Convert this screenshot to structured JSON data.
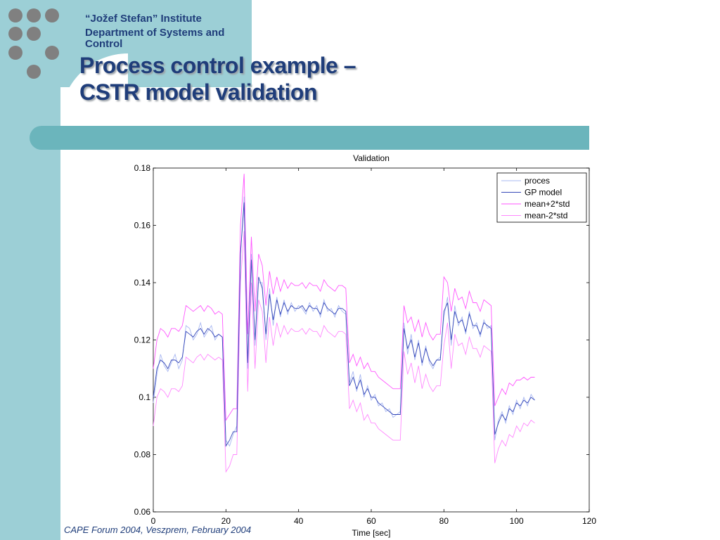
{
  "header": {
    "institute": "“Jožef Stefan” Institute",
    "department": "Department of Systems and Control"
  },
  "slide": {
    "title_line1": "Process control example –",
    "title_line2": "CSTR model validation"
  },
  "footer": {
    "text": "CAPE Forum 2004, Veszprem, February 2004"
  },
  "decor": {
    "dot_color": "#808080",
    "band_color": "#9ccfd6",
    "accent_color": "#6bb5bc",
    "title_color": "#1f3d7a"
  },
  "chart_data": {
    "type": "line",
    "title": "Validation",
    "xlabel": "Time [sec]",
    "ylabel": "",
    "xlim": [
      0,
      120
    ],
    "ylim": [
      0.06,
      0.18
    ],
    "xticks": [
      0,
      20,
      40,
      60,
      80,
      100,
      120
    ],
    "yticks": [
      0.06,
      0.08,
      0.1,
      0.12,
      0.14,
      0.16,
      0.18
    ],
    "xtick_labels": [
      "0",
      "20",
      "40",
      "60",
      "80",
      "100",
      "120"
    ],
    "ytick_labels": [
      "0.06",
      "0.08",
      "0.1",
      "0.12",
      "0.14",
      "0.16",
      "0.18"
    ],
    "legend_position": "top-right",
    "grid": false,
    "x": [
      0,
      1,
      2,
      3,
      4,
      5,
      6,
      7,
      8,
      9,
      10,
      11,
      12,
      13,
      14,
      15,
      16,
      17,
      18,
      19,
      20,
      21,
      22,
      23,
      24,
      25,
      26,
      27,
      28,
      29,
      30,
      31,
      32,
      33,
      34,
      35,
      36,
      37,
      38,
      39,
      40,
      41,
      42,
      43,
      44,
      45,
      46,
      47,
      48,
      49,
      50,
      51,
      52,
      53,
      54,
      55,
      56,
      57,
      58,
      59,
      60,
      61,
      62,
      63,
      64,
      65,
      66,
      67,
      68,
      69,
      70,
      71,
      72,
      73,
      74,
      75,
      76,
      77,
      78,
      79,
      80,
      81,
      82,
      83,
      84,
      85,
      86,
      87,
      88,
      89,
      90,
      91,
      92,
      93,
      94,
      95,
      96,
      97,
      98,
      99,
      100,
      101,
      102,
      103,
      104,
      105
    ],
    "series": [
      {
        "name": "proces",
        "color": "#a9b8f2",
        "values": [
          0.098,
          0.108,
          0.115,
          0.111,
          0.109,
          0.112,
          0.115,
          0.11,
          0.113,
          0.125,
          0.124,
          0.12,
          0.122,
          0.126,
          0.121,
          0.123,
          0.125,
          0.12,
          0.122,
          0.121,
          0.085,
          0.083,
          0.087,
          0.09,
          0.15,
          0.17,
          0.11,
          0.15,
          0.118,
          0.14,
          0.14,
          0.12,
          0.138,
          0.125,
          0.135,
          0.128,
          0.134,
          0.129,
          0.133,
          0.13,
          0.132,
          0.131,
          0.129,
          0.133,
          0.13,
          0.132,
          0.128,
          0.134,
          0.13,
          0.131,
          0.128,
          0.132,
          0.13,
          0.129,
          0.105,
          0.109,
          0.102,
          0.108,
          0.1,
          0.104,
          0.099,
          0.101,
          0.097,
          0.098,
          0.095,
          0.096,
          0.093,
          0.094,
          0.095,
          0.126,
          0.115,
          0.122,
          0.113,
          0.12,
          0.111,
          0.118,
          0.112,
          0.11,
          0.113,
          0.114,
          0.128,
          0.135,
          0.118,
          0.132,
          0.125,
          0.128,
          0.122,
          0.13,
          0.124,
          0.126,
          0.121,
          0.127,
          0.124,
          0.125,
          0.085,
          0.092,
          0.095,
          0.091,
          0.097,
          0.094,
          0.099,
          0.096,
          0.1,
          0.097,
          0.101,
          0.099
        ]
      },
      {
        "name": "GP model",
        "color": "#3548b8",
        "values": [
          0.1,
          0.11,
          0.113,
          0.112,
          0.11,
          0.113,
          0.113,
          0.112,
          0.114,
          0.123,
          0.122,
          0.121,
          0.123,
          0.124,
          0.122,
          0.124,
          0.123,
          0.121,
          0.122,
          0.121,
          0.083,
          0.085,
          0.088,
          0.088,
          0.15,
          0.168,
          0.112,
          0.148,
          0.12,
          0.142,
          0.138,
          0.122,
          0.136,
          0.127,
          0.134,
          0.129,
          0.133,
          0.13,
          0.132,
          0.131,
          0.131,
          0.132,
          0.13,
          0.132,
          0.131,
          0.131,
          0.129,
          0.133,
          0.131,
          0.13,
          0.129,
          0.131,
          0.131,
          0.13,
          0.104,
          0.107,
          0.103,
          0.106,
          0.101,
          0.103,
          0.1,
          0.1,
          0.098,
          0.097,
          0.096,
          0.095,
          0.094,
          0.094,
          0.094,
          0.124,
          0.117,
          0.12,
          0.114,
          0.119,
          0.112,
          0.117,
          0.113,
          0.111,
          0.113,
          0.113,
          0.13,
          0.133,
          0.12,
          0.13,
          0.126,
          0.127,
          0.123,
          0.129,
          0.125,
          0.125,
          0.122,
          0.126,
          0.125,
          0.124,
          0.087,
          0.091,
          0.094,
          0.092,
          0.096,
          0.095,
          0.098,
          0.097,
          0.099,
          0.098,
          0.1,
          0.099
        ]
      },
      {
        "name": "mean+2*std",
        "color": "#ff55ff",
        "values": [
          0.11,
          0.12,
          0.124,
          0.123,
          0.121,
          0.124,
          0.124,
          0.123,
          0.125,
          0.132,
          0.131,
          0.13,
          0.131,
          0.132,
          0.13,
          0.132,
          0.131,
          0.129,
          0.13,
          0.129,
          0.092,
          0.094,
          0.096,
          0.096,
          0.16,
          0.178,
          0.122,
          0.156,
          0.13,
          0.15,
          0.146,
          0.132,
          0.144,
          0.136,
          0.142,
          0.137,
          0.141,
          0.138,
          0.14,
          0.139,
          0.139,
          0.14,
          0.138,
          0.14,
          0.139,
          0.139,
          0.137,
          0.141,
          0.139,
          0.138,
          0.137,
          0.139,
          0.139,
          0.138,
          0.112,
          0.115,
          0.111,
          0.114,
          0.11,
          0.112,
          0.109,
          0.109,
          0.107,
          0.106,
          0.105,
          0.104,
          0.103,
          0.103,
          0.103,
          0.132,
          0.126,
          0.128,
          0.123,
          0.127,
          0.121,
          0.126,
          0.122,
          0.12,
          0.122,
          0.122,
          0.142,
          0.14,
          0.13,
          0.138,
          0.134,
          0.135,
          0.131,
          0.137,
          0.133,
          0.133,
          0.13,
          0.134,
          0.133,
          0.132,
          0.097,
          0.1,
          0.103,
          0.101,
          0.105,
          0.104,
          0.106,
          0.106,
          0.107,
          0.106,
          0.107,
          0.107
        ]
      },
      {
        "name": "mean-2*std",
        "color": "#ff88ff",
        "values": [
          0.09,
          0.1,
          0.103,
          0.102,
          0.1,
          0.103,
          0.103,
          0.102,
          0.104,
          0.114,
          0.113,
          0.112,
          0.114,
          0.115,
          0.113,
          0.115,
          0.114,
          0.113,
          0.114,
          0.113,
          0.074,
          0.076,
          0.08,
          0.08,
          0.14,
          0.158,
          0.102,
          0.14,
          0.11,
          0.134,
          0.13,
          0.112,
          0.128,
          0.118,
          0.126,
          0.121,
          0.125,
          0.122,
          0.124,
          0.123,
          0.123,
          0.124,
          0.122,
          0.124,
          0.123,
          0.123,
          0.121,
          0.125,
          0.123,
          0.122,
          0.121,
          0.123,
          0.123,
          0.122,
          0.096,
          0.099,
          0.095,
          0.098,
          0.092,
          0.094,
          0.091,
          0.091,
          0.089,
          0.088,
          0.087,
          0.086,
          0.085,
          0.085,
          0.085,
          0.116,
          0.108,
          0.112,
          0.105,
          0.111,
          0.103,
          0.108,
          0.104,
          0.102,
          0.104,
          0.104,
          0.118,
          0.126,
          0.11,
          0.122,
          0.118,
          0.119,
          0.115,
          0.121,
          0.117,
          0.117,
          0.114,
          0.118,
          0.117,
          0.116,
          0.077,
          0.082,
          0.085,
          0.083,
          0.087,
          0.086,
          0.09,
          0.088,
          0.091,
          0.09,
          0.092,
          0.091
        ]
      }
    ]
  }
}
